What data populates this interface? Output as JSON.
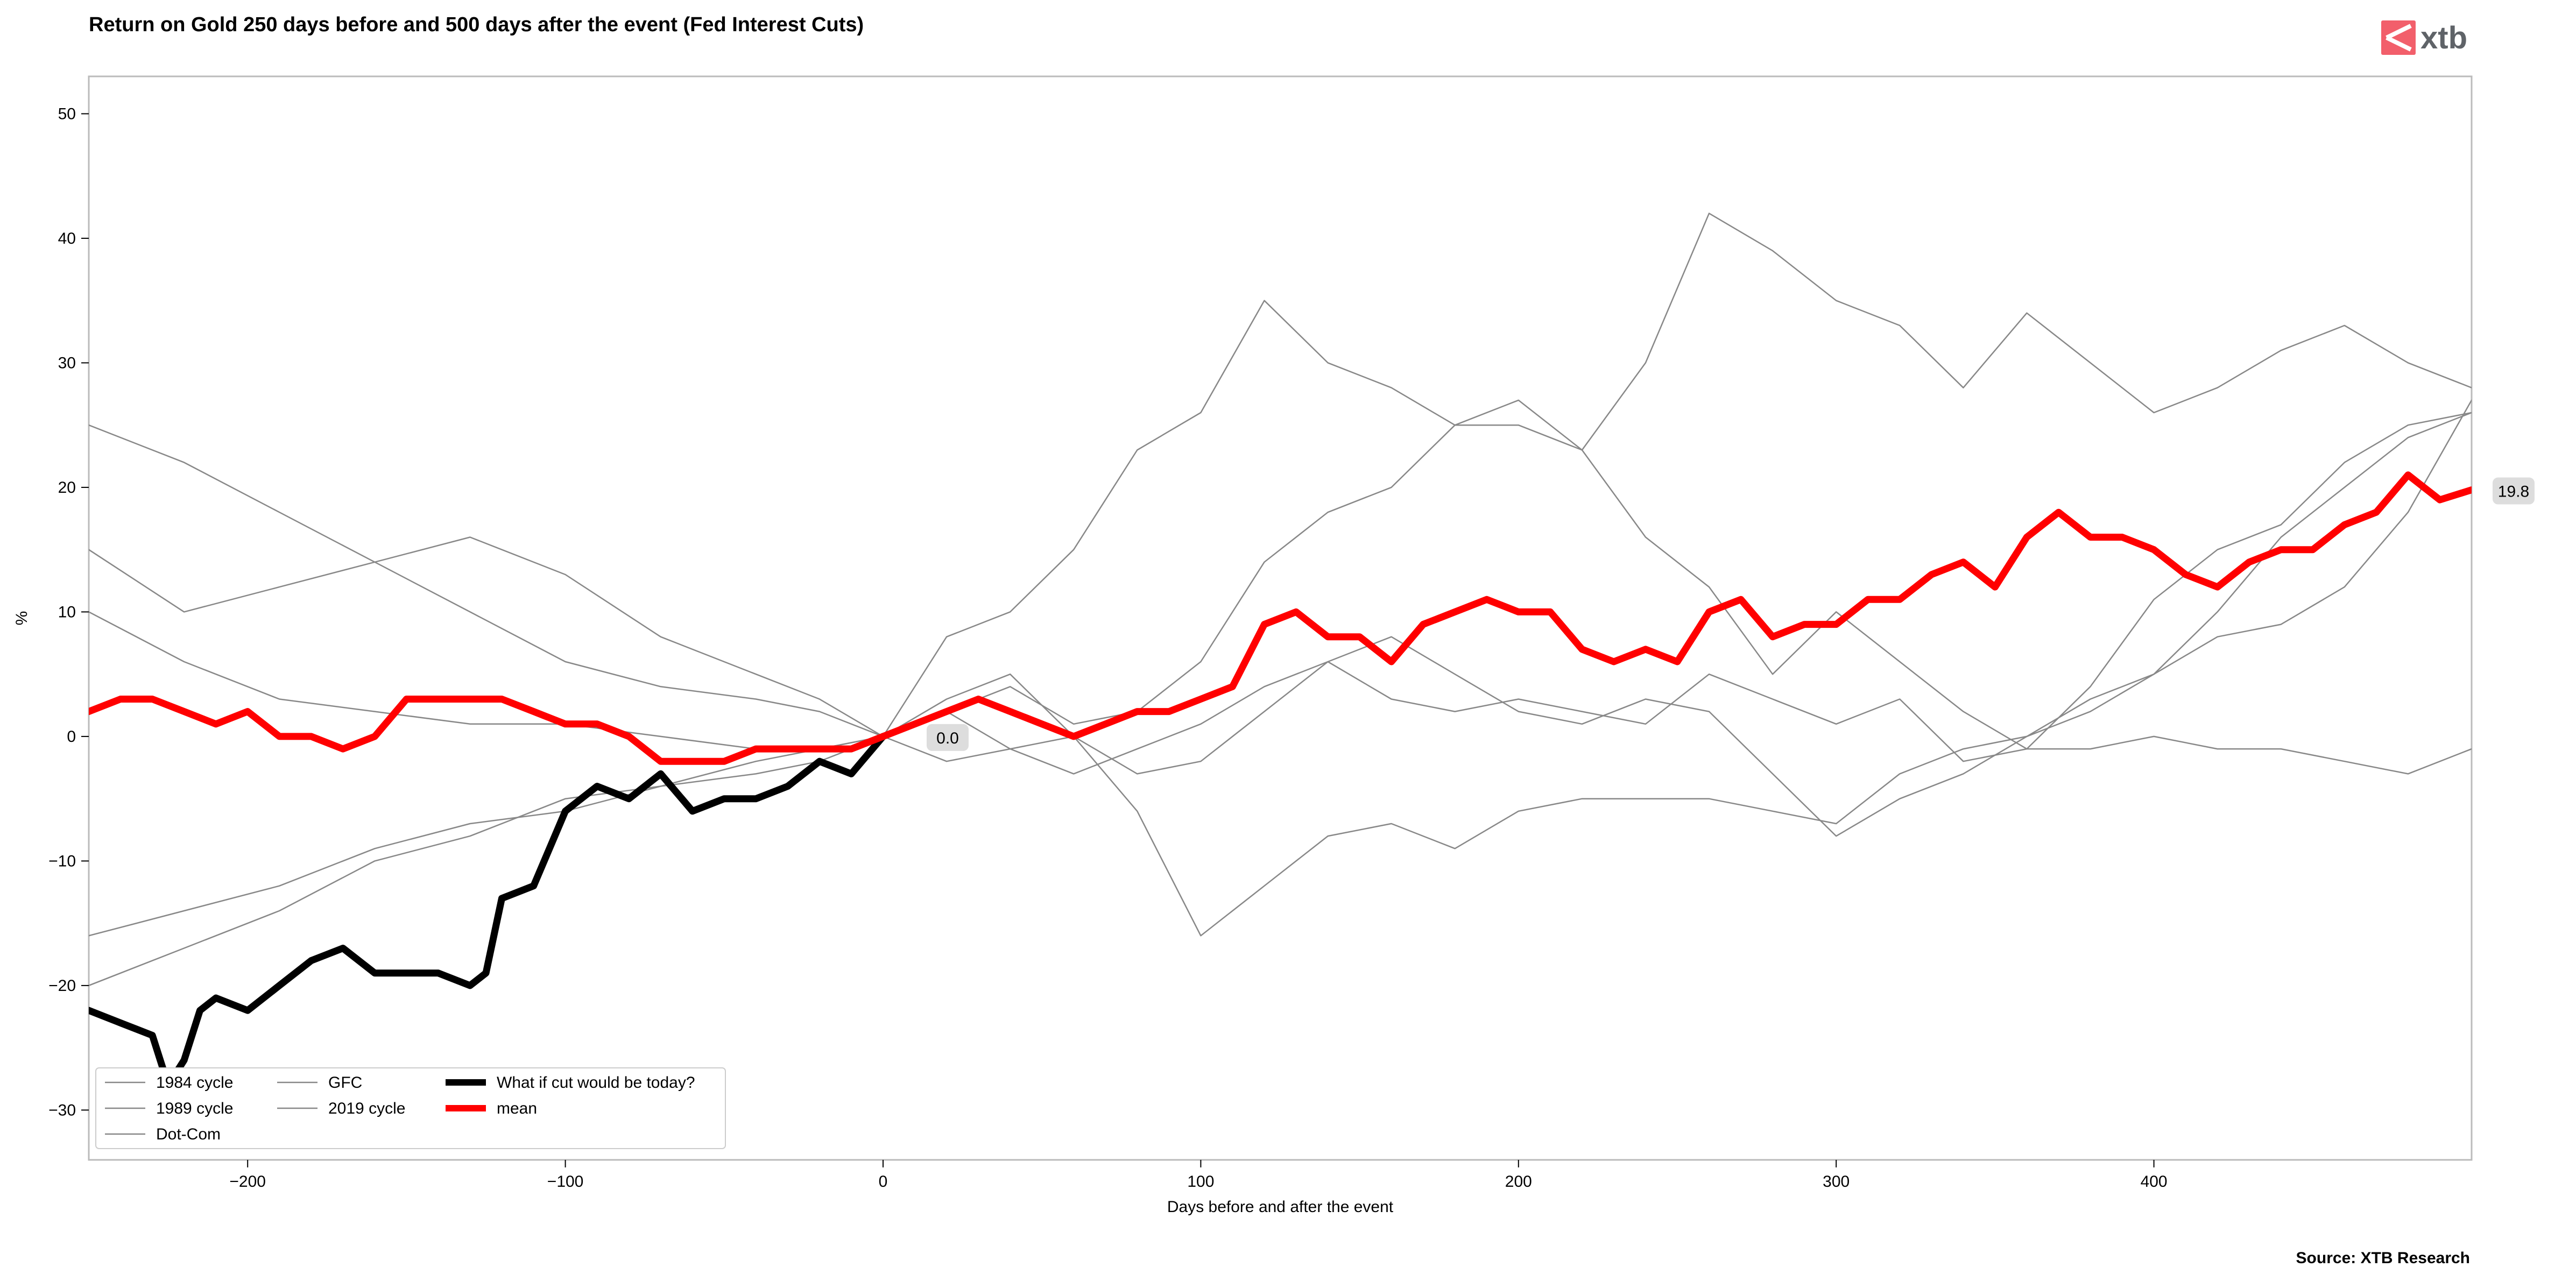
{
  "chart_data": {
    "type": "line",
    "title": "Return on Gold 250 days before and 500 days after the event (Fed Interest Cuts)",
    "xlabel": "Days before and after the event",
    "ylabel": "%",
    "xlim": [
      -250,
      500
    ],
    "ylim": [
      -34,
      53
    ],
    "xticks": [
      -200,
      -100,
      0,
      100,
      200,
      300,
      400
    ],
    "yticks": [
      -30,
      -20,
      -10,
      0,
      10,
      20,
      30,
      40,
      50
    ],
    "grid": false,
    "legend_position": "lower-left",
    "source": "Source: XTB Research",
    "logo_text": "xtb",
    "annotations": [
      {
        "x": 0,
        "y": 0,
        "label": "0.0",
        "color": "#dddddd"
      },
      {
        "x": 500,
        "y": 19.8,
        "label": "19.8",
        "color": "#dddddd"
      }
    ],
    "series": [
      {
        "name": "1984 cycle",
        "color": "#888888",
        "width": "thin",
        "x": [
          -250,
          -220,
          -190,
          -160,
          -130,
          -100,
          -70,
          -40,
          -20,
          0,
          20,
          40,
          60,
          80,
          100,
          120,
          140,
          160,
          180,
          200,
          220,
          240,
          260,
          280,
          300,
          320,
          340,
          360,
          380,
          400,
          420,
          440,
          460,
          480,
          500
        ],
        "y": [
          25,
          22,
          18,
          14,
          10,
          6,
          4,
          3,
          2,
          0,
          3,
          5,
          0,
          -6,
          -16,
          -12,
          -8,
          -7,
          -9,
          -6,
          -5,
          -5,
          -5,
          -6,
          -7,
          -3,
          -1,
          0,
          2,
          5,
          8,
          9,
          12,
          18,
          27
        ]
      },
      {
        "name": "1989 cycle",
        "color": "#888888",
        "width": "thin",
        "x": [
          -250,
          -220,
          -190,
          -160,
          -130,
          -100,
          -70,
          -40,
          -20,
          0,
          20,
          40,
          60,
          80,
          100,
          120,
          140,
          160,
          180,
          200,
          220,
          240,
          260,
          280,
          300,
          320,
          340,
          360,
          380,
          400,
          420,
          440,
          460,
          480,
          500
        ],
        "y": [
          15,
          10,
          12,
          14,
          16,
          13,
          8,
          5,
          3,
          0,
          -2,
          -1,
          0,
          -3,
          -2,
          2,
          6,
          8,
          5,
          2,
          1,
          3,
          2,
          -3,
          -8,
          -5,
          -3,
          0,
          3,
          5,
          10,
          16,
          20,
          24,
          26
        ]
      },
      {
        "name": "Dot-Com",
        "color": "#888888",
        "width": "thin",
        "x": [
          -250,
          -220,
          -190,
          -160,
          -130,
          -100,
          -70,
          -40,
          -20,
          0,
          20,
          40,
          60,
          80,
          100,
          120,
          140,
          160,
          180,
          200,
          220,
          240,
          260,
          280,
          300,
          320,
          340,
          360,
          380,
          400,
          420,
          440,
          460,
          480,
          500
        ],
        "y": [
          10,
          6,
          3,
          2,
          1,
          1,
          0,
          -1,
          -1,
          0,
          2,
          -1,
          -3,
          -1,
          1,
          4,
          6,
          3,
          2,
          3,
          2,
          1,
          5,
          3,
          1,
          3,
          -2,
          -1,
          -1,
          0,
          -1,
          -1,
          -2,
          -3,
          -1
        ]
      },
      {
        "name": "GFC",
        "color": "#888888",
        "width": "thin",
        "x": [
          -250,
          -220,
          -190,
          -160,
          -130,
          -100,
          -70,
          -40,
          -20,
          0,
          20,
          40,
          60,
          80,
          100,
          120,
          140,
          160,
          180,
          200,
          220,
          240,
          260,
          280,
          300,
          320,
          340,
          360,
          380,
          400,
          420,
          440,
          460,
          480,
          500
        ],
        "y": [
          -16,
          -14,
          -12,
          -9,
          -7,
          -6,
          -4,
          -3,
          -2,
          0,
          8,
          10,
          15,
          23,
          26,
          35,
          30,
          28,
          25,
          27,
          23,
          30,
          42,
          39,
          35,
          33,
          28,
          34,
          30,
          26,
          28,
          31,
          33,
          30,
          28
        ]
      },
      {
        "name": "2019 cycle",
        "color": "#888888",
        "width": "thin",
        "x": [
          -250,
          -220,
          -190,
          -160,
          -130,
          -100,
          -70,
          -40,
          -20,
          0,
          20,
          40,
          60,
          80,
          100,
          120,
          140,
          160,
          180,
          200,
          220,
          240,
          260,
          280,
          300,
          320,
          340,
          360,
          380,
          400,
          420,
          440,
          460,
          480,
          500
        ],
        "y": [
          -20,
          -17,
          -14,
          -10,
          -8,
          -5,
          -4,
          -2,
          -1,
          0,
          2,
          4,
          1,
          2,
          6,
          14,
          18,
          20,
          25,
          25,
          23,
          16,
          12,
          5,
          10,
          6,
          2,
          -1,
          4,
          11,
          15,
          17,
          22,
          25,
          26
        ]
      },
      {
        "name": "What if cut would be today?",
        "color": "#000000",
        "width": "thick",
        "x": [
          -250,
          -240,
          -230,
          -225,
          -220,
          -215,
          -210,
          -200,
          -190,
          -180,
          -170,
          -160,
          -150,
          -140,
          -130,
          -125,
          -120,
          -110,
          -100,
          -90,
          -80,
          -70,
          -60,
          -50,
          -40,
          -30,
          -20,
          -10,
          0
        ],
        "y": [
          -22,
          -23,
          -24,
          -28,
          -26,
          -22,
          -21,
          -22,
          -20,
          -18,
          -17,
          -19,
          -19,
          -19,
          -20,
          -19,
          -13,
          -12,
          -6,
          -4,
          -5,
          -3,
          -6,
          -5,
          -5,
          -4,
          -2,
          -3,
          0
        ]
      },
      {
        "name": "mean",
        "color": "#ff0000",
        "width": "thick",
        "x": [
          -250,
          -240,
          -230,
          -220,
          -210,
          -200,
          -190,
          -180,
          -170,
          -160,
          -150,
          -140,
          -130,
          -120,
          -110,
          -100,
          -90,
          -80,
          -70,
          -60,
          -50,
          -40,
          -30,
          -20,
          -10,
          0,
          10,
          20,
          30,
          40,
          50,
          60,
          70,
          80,
          90,
          100,
          110,
          120,
          130,
          140,
          150,
          160,
          170,
          180,
          190,
          200,
          210,
          220,
          230,
          240,
          250,
          260,
          270,
          280,
          290,
          300,
          310,
          320,
          330,
          340,
          350,
          360,
          370,
          380,
          390,
          400,
          410,
          420,
          430,
          440,
          450,
          460,
          470,
          480,
          490,
          500
        ],
        "y": [
          2,
          3,
          3,
          2,
          1,
          2,
          0,
          0,
          -1,
          0,
          3,
          3,
          3,
          3,
          2,
          1,
          1,
          0,
          -2,
          -2,
          -2,
          -1,
          -1,
          -1,
          -1,
          0,
          1,
          2,
          3,
          2,
          1,
          0,
          1,
          2,
          2,
          3,
          4,
          9,
          10,
          8,
          8,
          6,
          9,
          10,
          11,
          10,
          10,
          7,
          6,
          7,
          6,
          10,
          11,
          8,
          9,
          9,
          11,
          11,
          13,
          14,
          12,
          16,
          18,
          16,
          16,
          15,
          13,
          12,
          14,
          15,
          15,
          17,
          18,
          21,
          19,
          19.8
        ]
      }
    ]
  }
}
